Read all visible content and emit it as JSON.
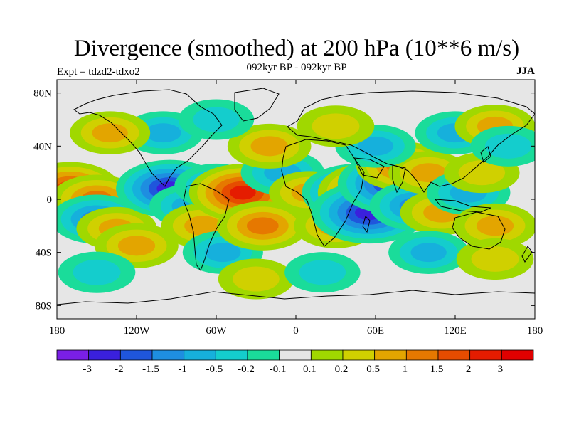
{
  "title": "Divergence (smoothed) at 200 hPa (10**6 m/s)",
  "subtitle": "092kyr BP - 092kyr BP",
  "expt_label": "Expt = tdzd2-tdxo2",
  "season": "JJA",
  "map": {
    "lon_range": [
      -180,
      180
    ],
    "lat_range": [
      -90,
      90
    ],
    "lon_ticks": [
      {
        "value": -180,
        "label": "180"
      },
      {
        "value": -120,
        "label": "120W"
      },
      {
        "value": -60,
        "label": "60W"
      },
      {
        "value": 0,
        "label": "0"
      },
      {
        "value": 60,
        "label": "60E"
      },
      {
        "value": 120,
        "label": "120E"
      },
      {
        "value": 180,
        "label": "180"
      }
    ],
    "lat_ticks": [
      {
        "value": 80,
        "label": "80N"
      },
      {
        "value": 40,
        "label": "40N"
      },
      {
        "value": 0,
        "label": "0"
      },
      {
        "value": -40,
        "label": "40S"
      },
      {
        "value": -80,
        "label": "80S"
      }
    ],
    "background_color": "#e6e6e6",
    "coastline_color": "#000000"
  },
  "colorbar": {
    "colors": [
      "#7a1fe6",
      "#3a20dd",
      "#1f56dc",
      "#1e8ee0",
      "#16b0dc",
      "#14cdcd",
      "#1adc9a",
      "#e6e6e6",
      "#a0d800",
      "#d0d000",
      "#e3a500",
      "#e67800",
      "#e64c00",
      "#e51c00",
      "#e00000"
    ],
    "labels": [
      "-3",
      "-2",
      "-1.5",
      "-1",
      "-0.5",
      "-0.2",
      "-0.1",
      "0.1",
      "0.2",
      "0.5",
      "1",
      "1.5",
      "2",
      "3"
    ]
  },
  "fields": [
    {
      "lon": -170,
      "lat": 8,
      "value": 2
    },
    {
      "lon": -150,
      "lat": 0,
      "value": 1.5
    },
    {
      "lon": -150,
      "lat": -15,
      "value": -1.5
    },
    {
      "lon": -135,
      "lat": -22,
      "value": 0.8
    },
    {
      "lon": -120,
      "lat": -35,
      "value": 1
    },
    {
      "lon": -95,
      "lat": 8,
      "value": -2.5
    },
    {
      "lon": -80,
      "lat": -5,
      "value": -0.8
    },
    {
      "lon": -70,
      "lat": -20,
      "value": 1
    },
    {
      "lon": -60,
      "lat": 10,
      "value": -1
    },
    {
      "lon": -40,
      "lat": 5,
      "value": 2.5
    },
    {
      "lon": -55,
      "lat": -40,
      "value": -0.8
    },
    {
      "lon": -25,
      "lat": -20,
      "value": 1.5
    },
    {
      "lon": -10,
      "lat": 20,
      "value": -1
    },
    {
      "lon": -20,
      "lat": 40,
      "value": 1
    },
    {
      "lon": -100,
      "lat": 50,
      "value": -0.8
    },
    {
      "lon": -140,
      "lat": 50,
      "value": 0.8
    },
    {
      "lon": -60,
      "lat": 60,
      "value": -0.5
    },
    {
      "lon": 10,
      "lat": 5,
      "value": 0.8
    },
    {
      "lon": 30,
      "lat": -20,
      "value": 1
    },
    {
      "lon": 45,
      "lat": 5,
      "value": -2.5
    },
    {
      "lon": 60,
      "lat": 5,
      "value": 3
    },
    {
      "lon": 55,
      "lat": -10,
      "value": -3
    },
    {
      "lon": 75,
      "lat": 12,
      "value": -3
    },
    {
      "lon": 80,
      "lat": 25,
      "value": 1.5
    },
    {
      "lon": 90,
      "lat": -5,
      "value": -1.5
    },
    {
      "lon": 100,
      "lat": 20,
      "value": 0.8
    },
    {
      "lon": 110,
      "lat": -10,
      "value": 1
    },
    {
      "lon": 130,
      "lat": 5,
      "value": -1
    },
    {
      "lon": 140,
      "lat": 20,
      "value": 0.5
    },
    {
      "lon": 150,
      "lat": -20,
      "value": 1
    },
    {
      "lon": 120,
      "lat": 50,
      "value": -0.8
    },
    {
      "lon": 150,
      "lat": 55,
      "value": 0.8
    },
    {
      "lon": 60,
      "lat": 40,
      "value": -0.8
    },
    {
      "lon": 30,
      "lat": 55,
      "value": 0.6
    },
    {
      "lon": -150,
      "lat": -55,
      "value": -0.6
    },
    {
      "lon": -30,
      "lat": -60,
      "value": 0.5
    },
    {
      "lon": 20,
      "lat": -55,
      "value": -0.5
    },
    {
      "lon": 100,
      "lat": -40,
      "value": -0.8
    },
    {
      "lon": 150,
      "lat": -45,
      "value": 0.6
    },
    {
      "lon": 160,
      "lat": 40,
      "value": -0.5
    }
  ]
}
